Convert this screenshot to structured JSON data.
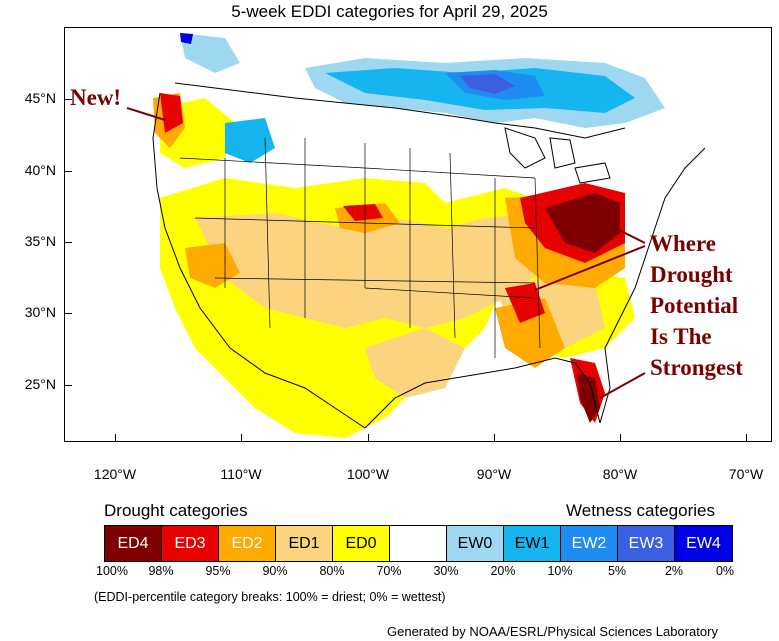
{
  "title": "5-week EDDI categories for April 29, 2025",
  "y_axis": {
    "ticks": [
      {
        "value": 45,
        "label": "45°N"
      },
      {
        "value": 40,
        "label": "40°N"
      },
      {
        "value": 35,
        "label": "35°N"
      },
      {
        "value": 30,
        "label": "30°N"
      },
      {
        "value": 25,
        "label": "25°N"
      }
    ]
  },
  "x_axis": {
    "ticks": [
      {
        "value": -120,
        "label": "120°W"
      },
      {
        "value": -110,
        "label": "110°W"
      },
      {
        "value": -100,
        "label": "100°W"
      },
      {
        "value": -90,
        "label": "90°W"
      },
      {
        "value": -80,
        "label": "80°W"
      },
      {
        "value": -70,
        "label": "70°W"
      }
    ]
  },
  "annotations": {
    "new_label": "New!",
    "strong_label_lines": [
      "Where",
      "Drought",
      "Potential",
      "Is The",
      "Strongest"
    ],
    "color": "#7a0000"
  },
  "legend": {
    "drought_title": "Drought categories",
    "wetness_title": "Wetness categories",
    "categories": [
      {
        "label": "ED4",
        "color": "#7f0000",
        "text_color": "#ffffff"
      },
      {
        "label": "ED3",
        "color": "#e60000",
        "text_color": "#ffffff"
      },
      {
        "label": "ED2",
        "color": "#ffaa00",
        "text_color": "#ffffff"
      },
      {
        "label": "ED1",
        "color": "#fcd37f",
        "text_color": "#000000"
      },
      {
        "label": "ED0",
        "color": "#ffff00",
        "text_color": "#000000"
      },
      {
        "label": "",
        "color": "#ffffff",
        "text_color": "#000000"
      },
      {
        "label": "EW0",
        "color": "#9ed8f0",
        "text_color": "#000000"
      },
      {
        "label": "EW1",
        "color": "#16b5f0",
        "text_color": "#000000"
      },
      {
        "label": "EW2",
        "color": "#1e8cf0",
        "text_color": "#ffffff"
      },
      {
        "label": "EW3",
        "color": "#3a5fe0",
        "text_color": "#ffffff"
      },
      {
        "label": "EW4",
        "color": "#0000e6",
        "text_color": "#ffffff"
      }
    ],
    "percent_breaks": [
      "100%",
      "98%",
      "95%",
      "90%",
      "80%",
      "70%",
      "30%",
      "20%",
      "10%",
      "5%",
      "2%",
      "0%"
    ]
  },
  "note": "(EDDI-percentile category breaks: 100% = driest; 0% = wettest)",
  "credit": "Generated by NOAA/ESRL/Physical Sciences Laboratory"
}
